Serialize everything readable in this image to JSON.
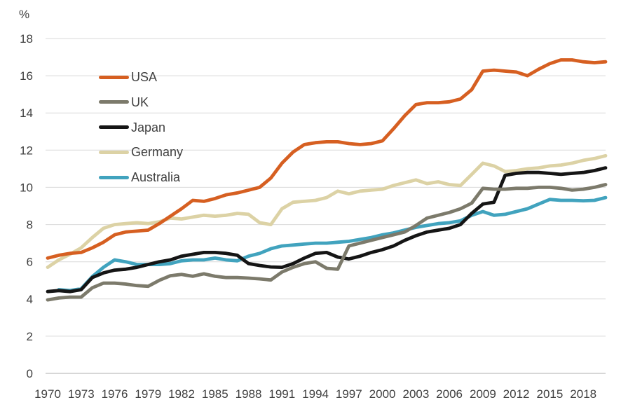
{
  "chart_data": {
    "type": "line",
    "title": "",
    "ylabel": "%",
    "xlabel": "",
    "ylim": [
      0,
      18
    ],
    "y_tick_step": 2,
    "grid": "horizontal-only",
    "legend_position": "upper-left-inside",
    "grid_color": "#D9D9D9",
    "axis_line_color": "#BFBFBF",
    "tick_text_color": "#404040",
    "years": [
      1970,
      1971,
      1972,
      1973,
      1974,
      1975,
      1976,
      1977,
      1978,
      1979,
      1980,
      1981,
      1982,
      1983,
      1984,
      1985,
      1986,
      1987,
      1988,
      1989,
      1990,
      1991,
      1992,
      1993,
      1994,
      1995,
      1996,
      1997,
      1998,
      1999,
      2000,
      2001,
      2002,
      2003,
      2004,
      2005,
      2006,
      2007,
      2008,
      2009,
      2010,
      2011,
      2012,
      2013,
      2014,
      2015,
      2016,
      2017,
      2018,
      2019,
      2020
    ],
    "x_tick_labels": [
      "1970",
      "1973",
      "1976",
      "1979",
      "1982",
      "1985",
      "1988",
      "1991",
      "1994",
      "1997",
      "2000",
      "2003",
      "2006",
      "2009",
      "2012",
      "2015",
      "2018"
    ],
    "y_tick_labels": [
      "0",
      "2",
      "4",
      "6",
      "8",
      "10",
      "12",
      "14",
      "16",
      "18"
    ],
    "series": [
      {
        "name": "USA",
        "color": "#D65F21",
        "values": [
          6.2,
          6.35,
          6.45,
          6.5,
          6.75,
          7.05,
          7.45,
          7.6,
          7.65,
          7.7,
          8.05,
          8.45,
          8.85,
          9.3,
          9.25,
          9.4,
          9.6,
          9.7,
          9.85,
          10.0,
          10.5,
          11.3,
          11.9,
          12.3,
          12.4,
          12.45,
          12.45,
          12.35,
          12.3,
          12.35,
          12.5,
          13.15,
          13.85,
          14.45,
          14.55,
          14.55,
          14.6,
          14.75,
          15.25,
          16.25,
          16.3,
          16.25,
          16.2,
          16.0,
          16.35,
          16.65,
          16.85,
          16.85,
          16.75,
          16.7,
          16.75
        ]
      },
      {
        "name": "UK",
        "color": "#7C7A6B",
        "values": [
          3.95,
          4.05,
          4.1,
          4.1,
          4.6,
          4.85,
          4.85,
          4.8,
          4.72,
          4.68,
          5.0,
          5.25,
          5.32,
          5.22,
          5.35,
          5.22,
          5.15,
          5.15,
          5.12,
          5.08,
          5.02,
          5.45,
          5.7,
          5.9,
          6.0,
          5.65,
          5.6,
          6.85,
          7.0,
          7.15,
          7.3,
          7.45,
          7.6,
          7.95,
          8.35,
          8.5,
          8.65,
          8.85,
          9.15,
          9.95,
          9.9,
          9.9,
          9.95,
          9.95,
          10.0,
          10.0,
          9.95,
          9.85,
          9.9,
          10.0,
          10.15
        ]
      },
      {
        "name": "Japan",
        "color": "#151515",
        "values": [
          4.4,
          4.45,
          4.4,
          4.5,
          5.15,
          5.4,
          5.55,
          5.6,
          5.7,
          5.85,
          6.0,
          6.1,
          6.3,
          6.4,
          6.5,
          6.5,
          6.45,
          6.35,
          5.9,
          5.8,
          5.72,
          5.7,
          5.9,
          6.2,
          6.45,
          6.5,
          6.25,
          6.15,
          6.3,
          6.5,
          6.65,
          6.85,
          7.15,
          7.4,
          7.6,
          7.7,
          7.8,
          8.0,
          8.6,
          9.1,
          9.2,
          10.65,
          10.75,
          10.8,
          10.8,
          10.75,
          10.7,
          10.75,
          10.8,
          10.9,
          11.05
        ]
      },
      {
        "name": "Germany",
        "color": "#DCD2A5",
        "values": [
          5.7,
          6.1,
          6.4,
          6.75,
          7.3,
          7.8,
          8.0,
          8.05,
          8.1,
          8.05,
          8.15,
          8.35,
          8.3,
          8.4,
          8.5,
          8.45,
          8.5,
          8.6,
          8.55,
          8.1,
          8.0,
          8.85,
          9.2,
          9.25,
          9.3,
          9.45,
          9.8,
          9.65,
          9.8,
          9.85,
          9.9,
          10.1,
          10.25,
          10.4,
          10.2,
          10.3,
          10.15,
          10.1,
          10.7,
          11.3,
          11.15,
          10.85,
          10.9,
          11.0,
          11.05,
          11.15,
          11.2,
          11.3,
          11.45,
          11.55,
          11.7
        ]
      },
      {
        "name": "Australia",
        "color": "#41A3BE",
        "values": [
          null,
          4.5,
          4.45,
          4.55,
          5.2,
          5.7,
          6.1,
          6.0,
          5.85,
          5.85,
          5.85,
          5.9,
          6.05,
          6.1,
          6.1,
          6.2,
          6.1,
          6.05,
          6.3,
          6.45,
          6.7,
          6.85,
          6.9,
          6.95,
          7.0,
          7.0,
          7.05,
          7.1,
          7.2,
          7.3,
          7.45,
          7.55,
          7.7,
          7.85,
          7.95,
          8.05,
          8.1,
          8.2,
          8.5,
          8.7,
          8.5,
          8.55,
          8.7,
          8.85,
          9.1,
          9.35,
          9.3,
          9.3,
          9.28,
          9.3,
          9.45
        ]
      }
    ]
  }
}
